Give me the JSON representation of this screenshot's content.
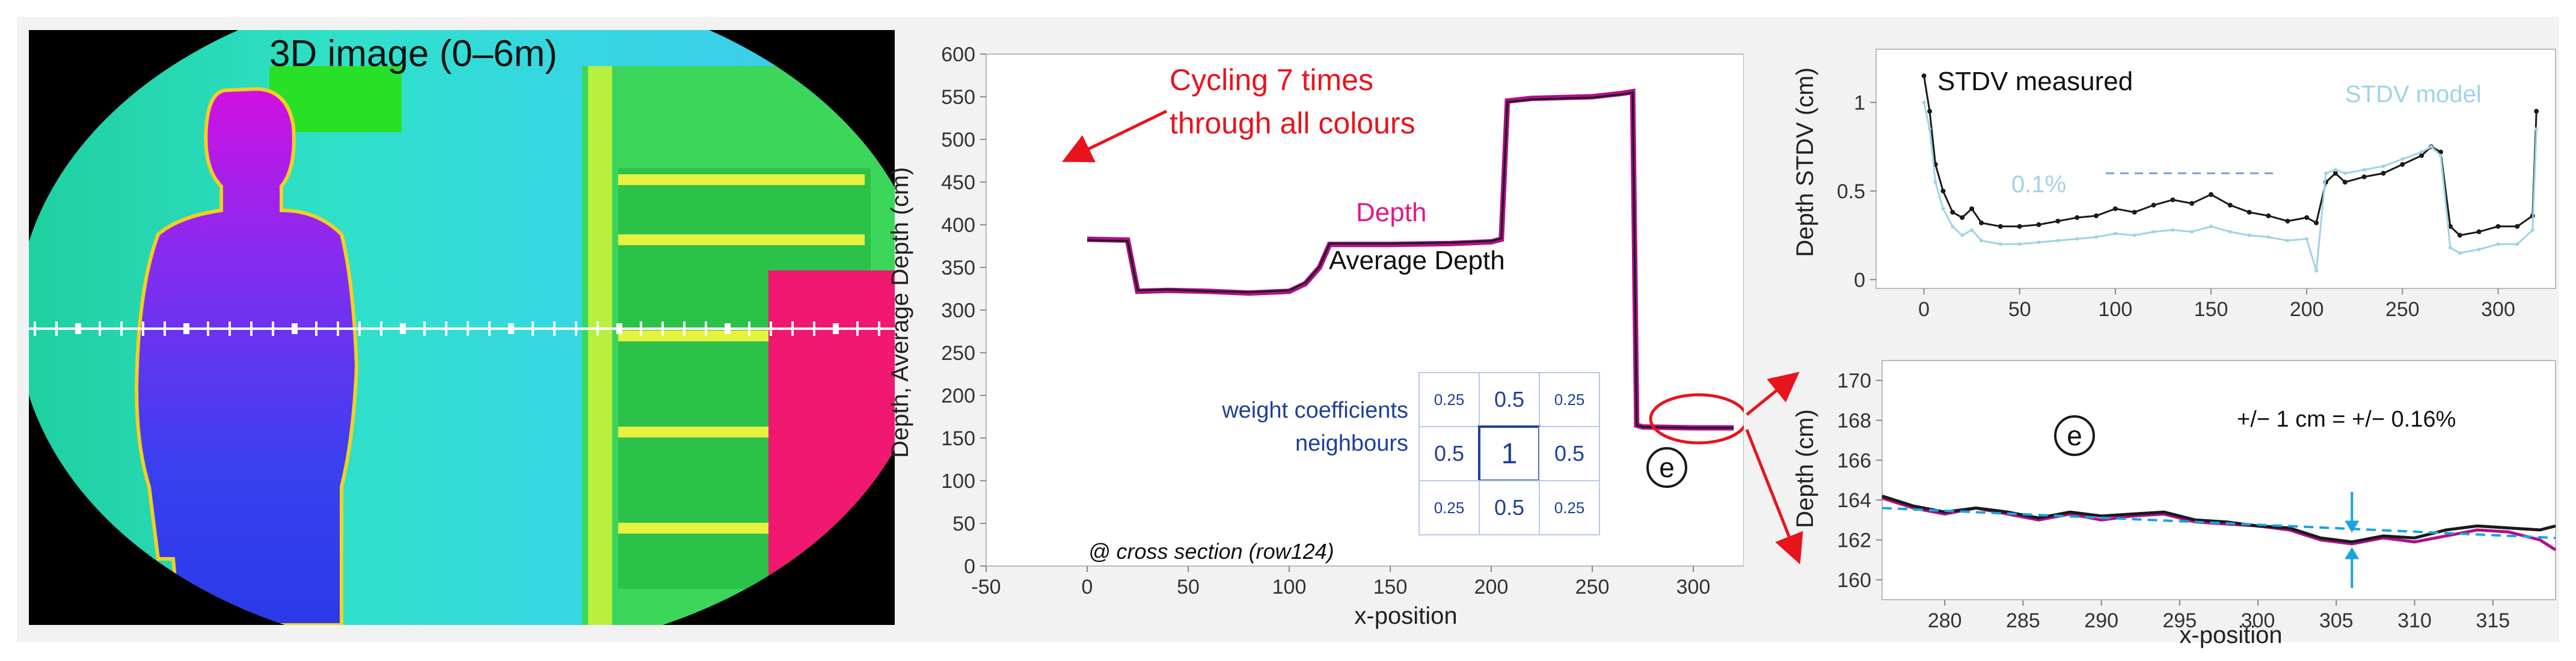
{
  "image_panel": {
    "title": "3D image (0–6m)"
  },
  "colors": {
    "depth_series": "#b0108a",
    "avg_series": "#1a1a1a",
    "annotation_red": "#e8141c",
    "annotation_blue": "#1f3f9a",
    "model_blue": "#9fd3e6",
    "arrow_cyan": "#1aa3e0",
    "depth_label": "#e0188c"
  },
  "main_chart": {
    "ylabel": "Depth, Average Depth (cm)",
    "xlabel": "x-position",
    "annotation_cycling_line1": "Cycling 7 times",
    "annotation_cycling_line2": "through all colours",
    "label_depth": "Depth",
    "label_avg": "Average Depth",
    "weight_label_line1": "weight coefficients",
    "weight_label_line2": "neighbours",
    "weight_grid": [
      "0.25",
      "0.5",
      "0.25",
      "0.5",
      "1",
      "0.5",
      "0.25",
      "0.5",
      "0.25"
    ],
    "cross_section_note": "@ cross section (row124)",
    "marker_e": "e"
  },
  "stdv_chart": {
    "ylabel": "Depth STDV (cm)",
    "label_measured": "STDV measured",
    "label_model": "STDV model",
    "label_pct": "0.1%"
  },
  "zoom_chart": {
    "ylabel": "Depth (cm)",
    "xlabel": "x-position",
    "marker_e": "e",
    "annotation": "+/− 1 cm = +/− 0.16%"
  },
  "chart_data": [
    {
      "type": "line",
      "title": "",
      "xlabel": "x-position",
      "ylabel": "Depth, Average Depth (cm)",
      "xlim": [
        -50,
        325
      ],
      "ylim": [
        0,
        600
      ],
      "x_ticks": [
        -50,
        0,
        50,
        100,
        150,
        200,
        250,
        300
      ],
      "y_ticks": [
        0,
        50,
        100,
        150,
        200,
        250,
        300,
        350,
        400,
        450,
        500,
        550,
        600
      ],
      "grid": false,
      "series": [
        {
          "name": "Depth",
          "x": [
            0,
            20,
            25,
            40,
            60,
            80,
            100,
            108,
            115,
            120,
            150,
            180,
            200,
            205,
            208,
            220,
            250,
            265,
            270,
            272,
            275,
            300,
            320
          ],
          "y": [
            383,
            382,
            322,
            323,
            322,
            320,
            322,
            331,
            350,
            377,
            377,
            378,
            380,
            383,
            545,
            548,
            550,
            554,
            556,
            165,
            163,
            162,
            162
          ]
        },
        {
          "name": "Average Depth",
          "x": [
            0,
            20,
            25,
            40,
            60,
            80,
            100,
            108,
            115,
            120,
            150,
            180,
            200,
            205,
            208,
            220,
            250,
            265,
            270,
            272,
            275,
            300,
            320
          ],
          "y": [
            382,
            381,
            323,
            324,
            322,
            321,
            323,
            332,
            351,
            378,
            378,
            379,
            381,
            384,
            544,
            547,
            549,
            553,
            555,
            165,
            163,
            162,
            162
          ]
        }
      ]
    },
    {
      "type": "line",
      "title": "",
      "xlabel": "",
      "ylabel": "Depth STDV (cm)",
      "xlim": [
        -25,
        330
      ],
      "ylim": [
        -0.05,
        1.3
      ],
      "x_ticks": [
        0,
        50,
        100,
        150,
        200,
        250,
        300
      ],
      "y_ticks": [
        0,
        0.5,
        1
      ],
      "grid": false,
      "series": [
        {
          "name": "STDV measured",
          "x": [
            0,
            3,
            6,
            10,
            15,
            20,
            25,
            30,
            40,
            50,
            60,
            70,
            80,
            90,
            100,
            110,
            120,
            130,
            140,
            150,
            160,
            170,
            180,
            190,
            200,
            205,
            210,
            215,
            220,
            230,
            240,
            250,
            260,
            265,
            270,
            275,
            280,
            290,
            300,
            310,
            318,
            320
          ],
          "y": [
            1.15,
            0.95,
            0.65,
            0.5,
            0.38,
            0.35,
            0.4,
            0.32,
            0.3,
            0.3,
            0.31,
            0.33,
            0.35,
            0.36,
            0.4,
            0.38,
            0.42,
            0.45,
            0.43,
            0.48,
            0.42,
            0.38,
            0.36,
            0.33,
            0.35,
            0.32,
            0.55,
            0.6,
            0.55,
            0.58,
            0.6,
            0.65,
            0.7,
            0.75,
            0.72,
            0.3,
            0.25,
            0.27,
            0.3,
            0.3,
            0.36,
            0.95
          ]
        },
        {
          "name": "STDV model",
          "x": [
            0,
            3,
            6,
            10,
            15,
            20,
            25,
            30,
            40,
            50,
            60,
            70,
            80,
            90,
            100,
            110,
            120,
            130,
            140,
            150,
            160,
            170,
            180,
            190,
            200,
            205,
            210,
            215,
            220,
            230,
            240,
            250,
            260,
            265,
            270,
            275,
            280,
            290,
            300,
            310,
            318,
            320
          ],
          "y": [
            1.0,
            0.85,
            0.55,
            0.4,
            0.3,
            0.25,
            0.28,
            0.22,
            0.2,
            0.2,
            0.21,
            0.22,
            0.23,
            0.24,
            0.26,
            0.25,
            0.27,
            0.28,
            0.27,
            0.3,
            0.27,
            0.25,
            0.24,
            0.22,
            0.23,
            0.05,
            0.6,
            0.62,
            0.6,
            0.62,
            0.64,
            0.68,
            0.72,
            0.75,
            0.7,
            0.18,
            0.15,
            0.17,
            0.2,
            0.2,
            0.28,
            0.85
          ]
        },
        {
          "name": "0.1%",
          "x": [
            95,
            185
          ],
          "y": [
            0.6,
            0.6
          ]
        }
      ]
    },
    {
      "type": "line",
      "title": "",
      "xlabel": "x-position",
      "ylabel": "Depth (cm)",
      "xlim": [
        276,
        319
      ],
      "ylim": [
        159,
        171
      ],
      "x_ticks": [
        280,
        285,
        290,
        295,
        300,
        305,
        310,
        315
      ],
      "y_ticks": [
        160,
        162,
        164,
        166,
        168,
        170
      ],
      "grid": false,
      "series": [
        {
          "name": "Depth",
          "x": [
            276,
            278,
            280,
            282,
            284,
            286,
            288,
            290,
            292,
            294,
            296,
            298,
            300,
            302,
            304,
            306,
            308,
            310,
            312,
            314,
            316,
            318,
            319
          ],
          "y": [
            164.1,
            163.6,
            163.3,
            163.6,
            163.3,
            163.0,
            163.3,
            163.0,
            163.2,
            163.3,
            162.9,
            162.8,
            162.7,
            162.5,
            162.0,
            161.8,
            162.1,
            161.9,
            162.2,
            162.5,
            162.4,
            162.0,
            161.5
          ]
        },
        {
          "name": "Average Depth",
          "x": [
            276,
            278,
            280,
            282,
            284,
            286,
            288,
            290,
            292,
            294,
            296,
            298,
            300,
            302,
            304,
            306,
            308,
            310,
            312,
            314,
            316,
            318,
            319
          ],
          "y": [
            164.2,
            163.7,
            163.4,
            163.6,
            163.4,
            163.1,
            163.4,
            163.2,
            163.3,
            163.4,
            163.0,
            162.9,
            162.7,
            162.6,
            162.1,
            161.9,
            162.2,
            162.1,
            162.5,
            162.7,
            162.6,
            162.5,
            162.7
          ]
        },
        {
          "name": "trend",
          "x": [
            276,
            319
          ],
          "y": [
            163.6,
            162.1
          ]
        }
      ]
    }
  ]
}
